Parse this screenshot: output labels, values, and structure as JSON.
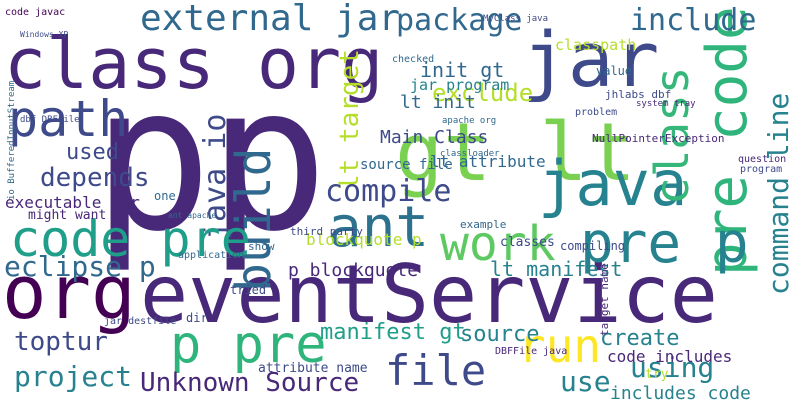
{
  "words": [
    "p",
    "p",
    "eventService",
    "org",
    "class org",
    "jar",
    "gt lt",
    "pre code",
    "java",
    "build",
    "java io",
    "lt target",
    "class",
    "command line",
    "pre p",
    "ant",
    "work",
    "code pre",
    "path",
    "external jar",
    "package",
    "include",
    "classpath",
    "file",
    "run",
    "p pre",
    "Unknown Source",
    "project",
    "toptur",
    "eclipse p",
    "depends",
    "used",
    "compile",
    "exclude",
    "init gt",
    "lt init",
    "jar program",
    "Main Class",
    "lt attribute",
    "source file",
    "blockquote p",
    "lt manifest",
    "p blockquote",
    "manifest gt",
    "source",
    "create",
    "using",
    "use",
    "code includes",
    "includes code",
    "executable jar",
    "might want",
    "code javac",
    "Windows XP",
    "NullPointerException",
    "dbf DBFFile",
    "io BufferedInputStream",
    "problem",
    "question",
    "program",
    "tried",
    "application",
    "third party",
    "example",
    "classes",
    "value",
    "DBFFile java",
    "attribute name",
    "dir",
    "jar destfile",
    "one",
    "ant apache",
    "compiling",
    "jhlabs dbf",
    "show",
    "target name",
    "try",
    "system tray",
    "apache org",
    "MyClass java",
    "checked",
    "classloader"
  ]
}
